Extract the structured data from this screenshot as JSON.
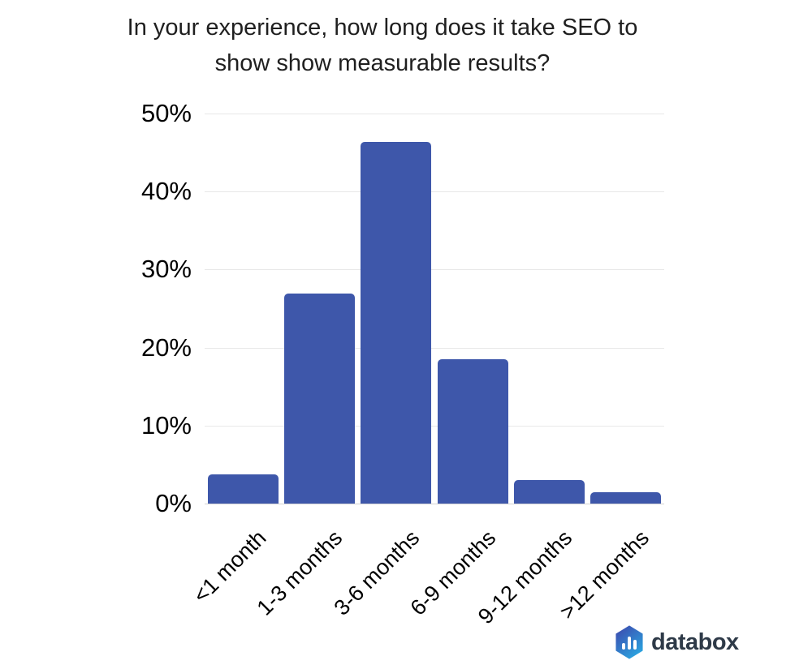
{
  "header": {
    "title_lines": [
      "In your experience, how long does it take SEO to",
      "show show measurable results?"
    ]
  },
  "chart_data": {
    "type": "bar",
    "title": "In your experience, how long does it take SEO to show show measurable results?",
    "categories": [
      "<1 month",
      "1-3 months",
      "3-6 months",
      "6-9 months",
      "9-12 months",
      ">12 months"
    ],
    "values": [
      3.7,
      26.9,
      46.4,
      18.5,
      3.0,
      1.5
    ],
    "xlabel": "",
    "ylabel": "",
    "ylim": [
      0,
      50
    ],
    "y_ticks": [
      "0%",
      "10%",
      "20%",
      "30%",
      "40%",
      "50%"
    ],
    "grid": true,
    "legend": "none",
    "bar_color": "#3E57AA"
  },
  "footer": {
    "brand": "databox"
  },
  "colors": {
    "bar": "#3E57AA",
    "gridline": "#E8E8E8",
    "baseline": "#D4D4D4",
    "title_text": "#1F1F1F",
    "axis_text": "#000000",
    "brand_text": "#2E3A48",
    "logo_gradient_start": "#3C4FB1",
    "logo_gradient_end": "#2AA7E1"
  }
}
